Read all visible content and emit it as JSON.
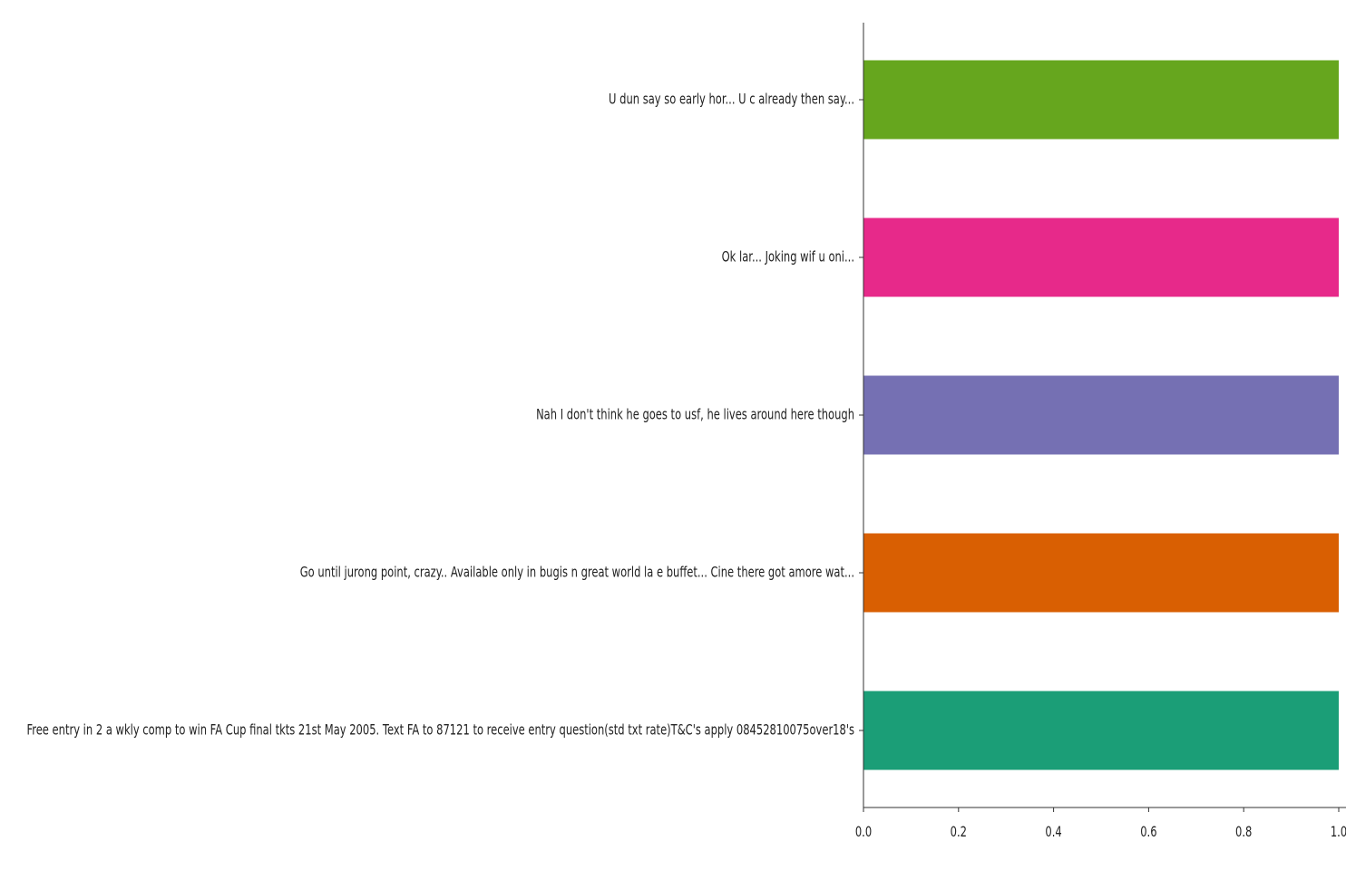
{
  "chart_data": {
    "type": "bar",
    "orientation": "horizontal",
    "title": "",
    "xlabel": "",
    "ylabel": "",
    "xlim": [
      0,
      1.0
    ],
    "grid": false,
    "categories": [
      "U dun say so early hor... U c already then say...",
      "Ok lar... Joking wif u oni...",
      "Nah I don't think he goes to usf, he lives around here though",
      "Go until jurong point, crazy.. Available only in bugis n great world la e buffet... Cine there got amore wat...",
      "Free entry in 2 a wkly comp to win FA Cup final tkts 21st May 2005. Text FA to 87121 to receive entry question(std txt rate)T&C's apply 08452810075over18's"
    ],
    "values": [
      1.0,
      1.0,
      1.0,
      1.0,
      1.0
    ],
    "bar_colors": [
      "#66a61e",
      "#e7298a",
      "#7570b3",
      "#d95f02",
      "#1b9e77"
    ],
    "x_ticks": [
      0.0,
      0.2,
      0.4,
      0.6,
      0.8,
      1.0
    ],
    "x_tick_labels": [
      "0.0",
      "0.2",
      "0.4",
      "0.6",
      "0.8",
      "1.0"
    ]
  }
}
